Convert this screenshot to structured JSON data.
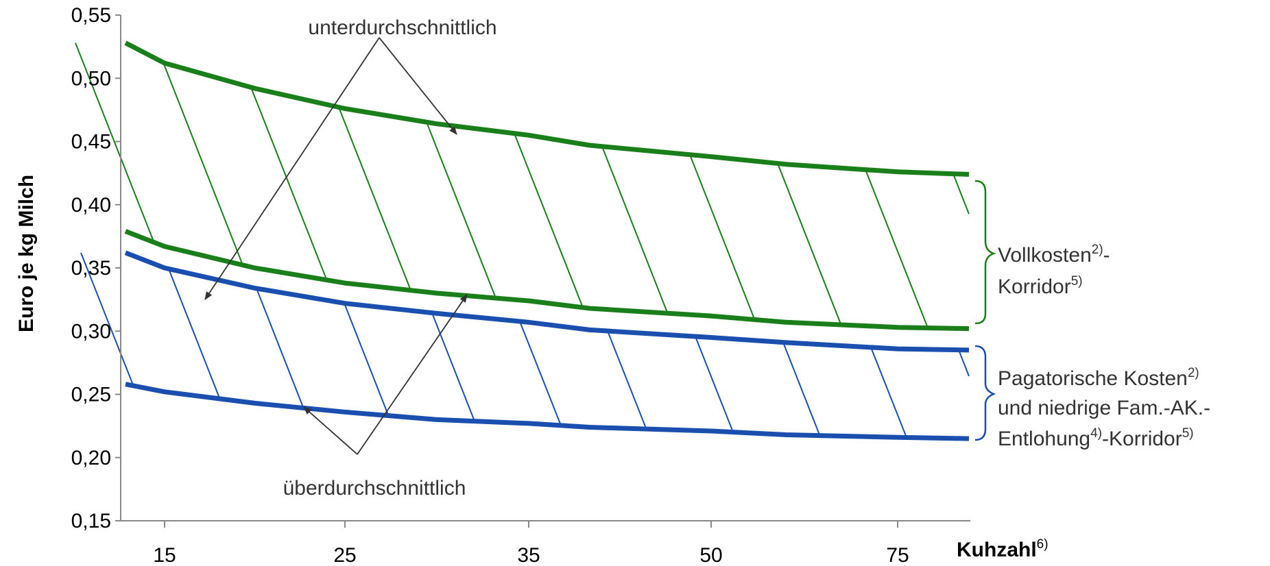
{
  "chart_data": {
    "type": "line",
    "ylabel": "Euro je kg Milch",
    "xlabel": "Kuhzahl",
    "xlabel_sup": "6)",
    "x_ticks": [
      "15",
      "25",
      "35",
      "50",
      "75"
    ],
    "y_ticks": [
      "0,15",
      "0,20",
      "0,25",
      "0,30",
      "0,35",
      "0,40",
      "0,45",
      "0,50",
      "0,55"
    ],
    "ylim": [
      0.15,
      0.55
    ],
    "grid": false,
    "x": [
      12,
      15,
      20,
      25,
      30,
      35,
      40,
      50,
      60,
      75,
      82
    ],
    "series": [
      {
        "role": "vollkosten_upper",
        "color": "#1a7f1a",
        "values": [
          0.528,
          0.512,
          0.492,
          0.476,
          0.464,
          0.455,
          0.447,
          0.438,
          0.432,
          0.426,
          0.424
        ]
      },
      {
        "role": "vollkosten_lower",
        "color": "#1a7f1a",
        "values": [
          0.379,
          0.367,
          0.35,
          0.338,
          0.33,
          0.324,
          0.318,
          0.312,
          0.307,
          0.303,
          0.302
        ]
      },
      {
        "role": "pagatorisch_upper",
        "color": "#1a4fb0",
        "values": [
          0.362,
          0.35,
          0.334,
          0.322,
          0.314,
          0.307,
          0.301,
          0.295,
          0.291,
          0.286,
          0.285
        ]
      },
      {
        "role": "pagatorisch_lower",
        "color": "#1a4fb0",
        "values": [
          0.258,
          0.252,
          0.243,
          0.236,
          0.23,
          0.227,
          0.224,
          0.221,
          0.218,
          0.216,
          0.215
        ]
      }
    ],
    "annotations": {
      "top": "unterdurchschnittlich",
      "bottom": "überdurchschnittlich"
    },
    "corridors": {
      "vollkosten": {
        "line1": "Vollkosten",
        "line1_sup": "2)",
        "line1_tail": "-",
        "line2": "Korridor",
        "line2_sup": "5)"
      },
      "pagatorisch": {
        "line1": "Pagatorische Kosten",
        "line1_sup": "2)",
        "line2": "und niedrige Fam.-AK.-",
        "line3": "Entlohung",
        "line3_sup": "4)",
        "line3_tail": "-Korridor",
        "line3_sup2": "5)"
      }
    }
  }
}
